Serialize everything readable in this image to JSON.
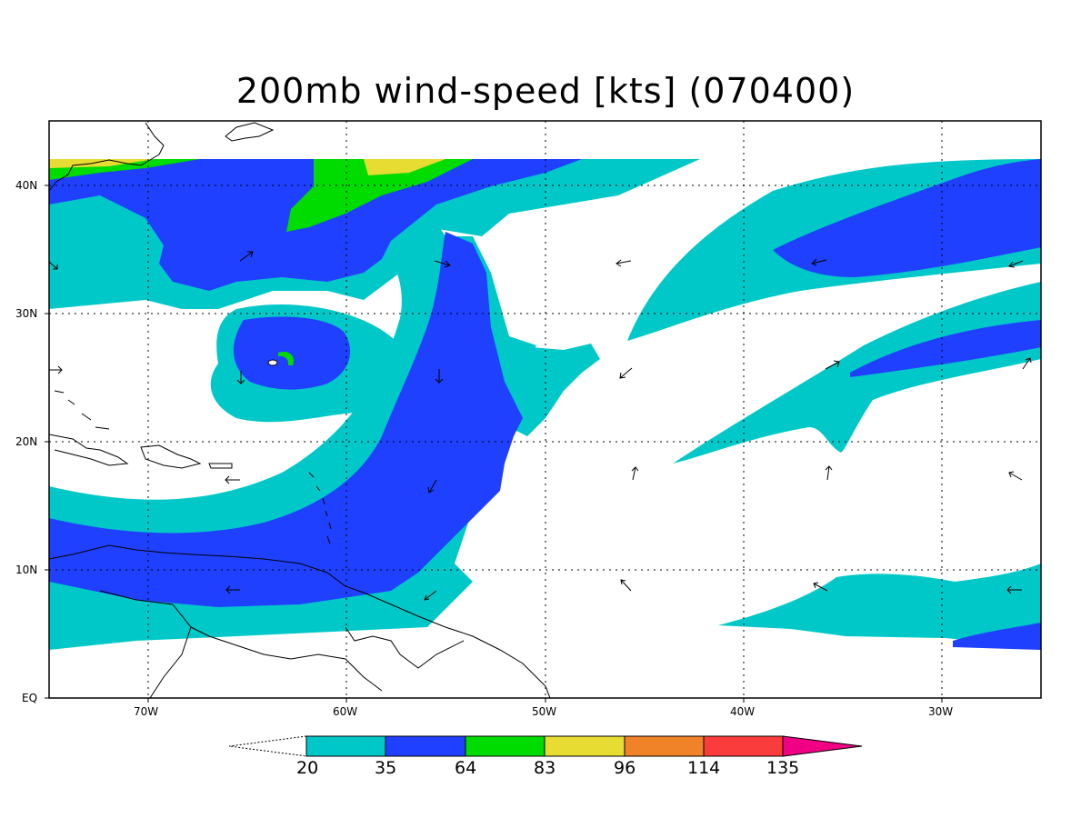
{
  "title": "200mb wind-speed [kts] (070400)",
  "axes": {
    "lon_ticks": [
      "70W",
      "60W",
      "50W",
      "40W",
      "30W"
    ],
    "lat_ticks": [
      "EQ",
      "10N",
      "20N",
      "30N",
      "40N"
    ],
    "grid": "dotted"
  },
  "colorbar": {
    "levels": [
      "20",
      "35",
      "64",
      "83",
      "96",
      "114",
      "135"
    ],
    "colors": [
      "#00c8c8",
      "#2040ff",
      "#00dc00",
      "#e6dc32",
      "#f08228",
      "#fa3c3c",
      "#f00082"
    ],
    "below_color": "#ffffff",
    "above_color": "#f00082"
  },
  "map_colors": {
    "cyan": "#00c8c8",
    "blue": "#2040ff",
    "green": "#00dc00",
    "yellow": "#e6dc32",
    "coast": "#000000"
  }
}
